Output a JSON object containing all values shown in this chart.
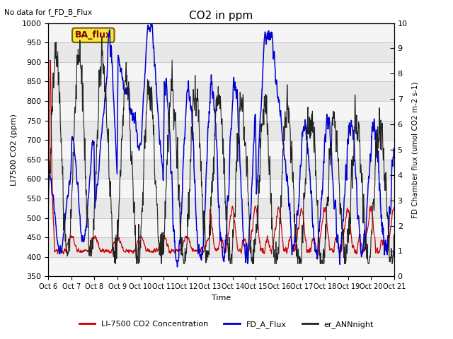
{
  "title": "CO2 in ppm",
  "top_left_note": "No data for f_FD_B_Flux",
  "legend_box_label": "BA_flux",
  "legend_box_facecolor": "#f5e642",
  "legend_box_edgecolor": "#7a5c00",
  "xlabel": "Time",
  "ylabel_left": "LI7500 CO2 (ppm)",
  "ylabel_right": "FD Chamber flux (umol CO2 m-2 s-1)",
  "ylim_left": [
    350,
    1000
  ],
  "ylim_right": [
    0.0,
    10.0
  ],
  "xtick_labels": [
    "Oct 6",
    "Oct 7",
    "Oct 8",
    "Oct 9",
    "Oct 10",
    "Oct 11",
    "Oct 12",
    "Oct 13",
    "Oct 14",
    "Oct 15",
    "Oct 16",
    "Oct 17",
    "Oct 18",
    "Oct 19",
    "Oct 20",
    "Oct 21"
  ],
  "line_colors": {
    "red": "#cc0000",
    "blue": "#0000cc",
    "black": "#222222"
  },
  "line_labels": [
    "LI-7500 CO2 Concentration",
    "FD_A_Flux",
    "er_ANNnight"
  ],
  "figsize": [
    6.4,
    4.8
  ],
  "dpi": 100,
  "band_colors": [
    "#e8e8e8",
    "#f5f5f5"
  ],
  "band_step": 50,
  "yticks_left": [
    350,
    400,
    450,
    500,
    550,
    600,
    650,
    700,
    750,
    800,
    850,
    900,
    950,
    1000
  ],
  "yticks_right": [
    0.0,
    1.0,
    2.0,
    3.0,
    4.0,
    5.0,
    6.0,
    7.0,
    8.0,
    9.0,
    10.0
  ]
}
